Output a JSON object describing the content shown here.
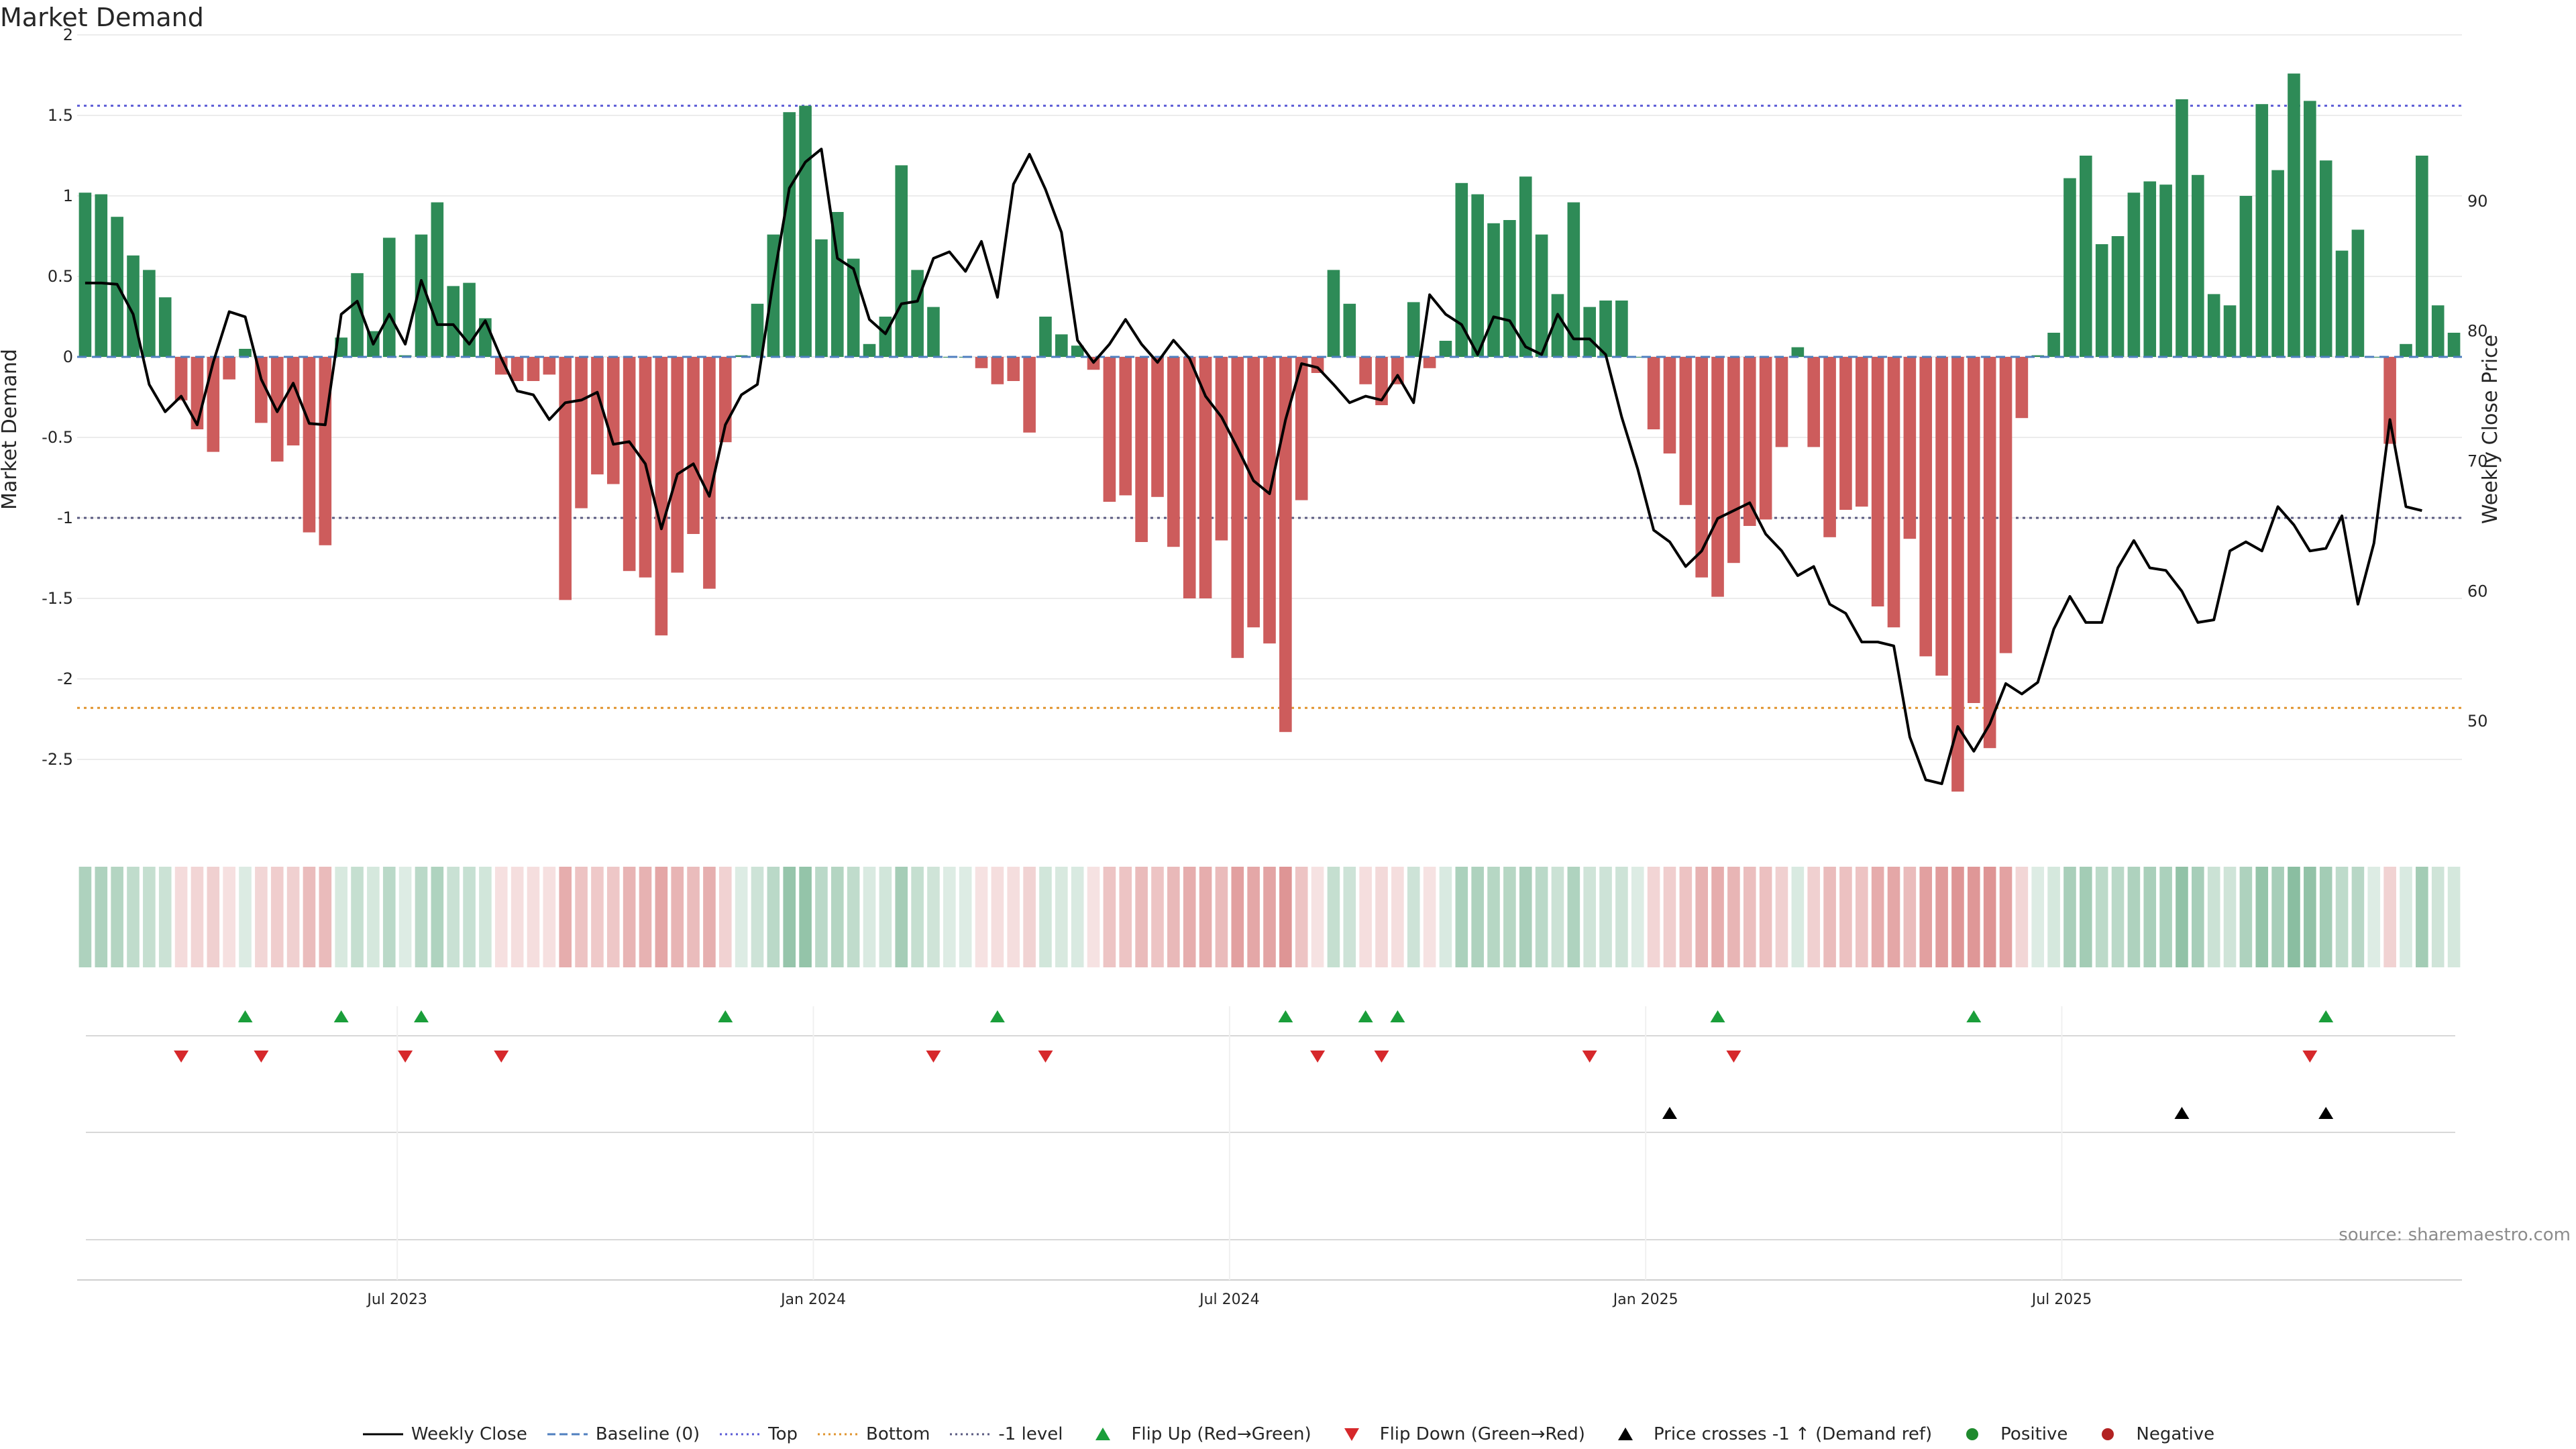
{
  "title": "Market Demand",
  "source": "source: sharemaestro.com",
  "colors": {
    "positive": "#2e8b57",
    "negative": "#cd5c5c",
    "price": "#000000",
    "baseline": "#4f7fbf",
    "top": "#5b5bd6",
    "bottom": "#e0942e",
    "minus_one": "#5a5a80",
    "flip_up": "#1a9e3a",
    "flip_down": "#d6282b",
    "cross": "#000000"
  },
  "legend": [
    {
      "label": "Weekly Close",
      "kind": "line",
      "color": "#000000"
    },
    {
      "label": "Baseline (0)",
      "kind": "dash",
      "color": "#4f7fbf"
    },
    {
      "label": "Top",
      "kind": "dot",
      "color": "#5b5bd6"
    },
    {
      "label": "Bottom",
      "kind": "dot",
      "color": "#e0942e"
    },
    {
      "label": "-1 level",
      "kind": "dot",
      "color": "#5a5a80"
    },
    {
      "label": "Flip Up (Red→Green)",
      "kind": "tri-up",
      "color": "#1a9e3a"
    },
    {
      "label": "Flip Down (Green→Red)",
      "kind": "tri-down",
      "color": "#d6282b"
    },
    {
      "label": "Price crosses -1 ↑ (Demand ref)",
      "kind": "tri-up",
      "color": "#000000"
    },
    {
      "label": "Positive",
      "kind": "circle",
      "color": "#1f8a2e"
    },
    {
      "label": "Negative",
      "kind": "circle",
      "color": "#b22222"
    }
  ],
  "chart_data": {
    "type": "bar",
    "title": "Market Demand",
    "ylabel": "Market Demand",
    "y2label": "Weekly Close Price",
    "ylim": [
      -2.95,
      2.05
    ],
    "y_ticks": [
      -2.5,
      -2,
      -1.5,
      -1,
      -0.5,
      0,
      0.5,
      1,
      1.5,
      2
    ],
    "y_tick_labels": [
      "-2.5",
      "-2",
      "-1.5",
      "-1",
      "-0.5",
      "0",
      "0.5",
      "1",
      "1.5",
      "2"
    ],
    "y2lim": [
      41.5,
      103.4
    ],
    "y2_ticks": [
      50,
      60,
      70,
      80,
      90
    ],
    "y2_tick_labels": [
      "50",
      "60",
      "70",
      "80",
      "90"
    ],
    "x_ticks": [
      20,
      46,
      72,
      98,
      124
    ],
    "x_tick_labels": [
      "Jul 2023",
      "Jan 2024",
      "Jul 2024",
      "Jan 2025",
      "Jul 2025"
    ],
    "reference_lines": {
      "top": 1.56,
      "bottom": -2.18,
      "minus_one": -1.0,
      "baseline": 0
    },
    "demand": [
      1.02,
      1.01,
      0.87,
      0.63,
      0.54,
      0.37,
      -0.27,
      -0.45,
      -0.59,
      -0.14,
      0.05,
      -0.41,
      -0.65,
      -0.55,
      -1.09,
      -1.17,
      0.12,
      0.52,
      0.16,
      0.74,
      0.01,
      0.76,
      0.96,
      0.44,
      0.46,
      0.24,
      -0.11,
      -0.15,
      -0.15,
      -0.11,
      -1.51,
      -0.94,
      -0.73,
      -0.79,
      -1.33,
      -1.37,
      -1.73,
      -1.34,
      -1.1,
      -1.44,
      -0.53,
      0.01,
      0.33,
      0.76,
      1.52,
      1.56,
      0.73,
      0.9,
      0.61,
      0.08,
      0.25,
      1.19,
      0.54,
      0.31,
      0.0,
      0.0,
      -0.07,
      -0.17,
      -0.15,
      -0.47,
      0.25,
      0.14,
      0.07,
      -0.08,
      -0.9,
      -0.86,
      -1.15,
      -0.87,
      -1.18,
      -1.5,
      -1.5,
      -1.14,
      -1.87,
      -1.68,
      -1.78,
      -2.33,
      -0.89,
      -0.1,
      0.54,
      0.33,
      -0.17,
      -0.3,
      -0.17,
      0.34,
      -0.07,
      0.1,
      1.08,
      1.01,
      0.83,
      0.85,
      1.12,
      0.76,
      0.39,
      0.96,
      0.31,
      0.35,
      0.35,
      0.0,
      -0.45,
      -0.6,
      -0.92,
      -1.37,
      -1.49,
      -1.28,
      -1.05,
      -1.01,
      -0.56,
      0.06,
      -0.56,
      -1.12,
      -0.95,
      -0.93,
      -1.55,
      -1.68,
      -1.13,
      -1.86,
      -1.98,
      -2.7,
      -2.15,
      -2.43,
      -1.84,
      -0.38,
      0.01,
      0.15,
      1.11,
      1.25,
      0.7,
      0.75,
      1.02,
      1.09,
      1.07,
      1.6,
      1.13,
      0.39,
      0.32,
      1.0,
      1.57,
      1.16,
      1.76,
      1.59,
      1.22,
      0.66,
      0.79,
      0.0,
      -0.54,
      0.08,
      1.25,
      0.32,
      0.15
    ],
    "price": [
      83.7,
      83.7,
      83.6,
      81.3,
      75.9,
      73.8,
      75.0,
      72.8,
      77.6,
      81.5,
      81.1,
      76.3,
      73.8,
      76.0,
      72.9,
      72.8,
      81.3,
      82.3,
      79.0,
      81.3,
      79.0,
      83.9,
      80.5,
      80.5,
      79.0,
      80.8,
      77.9,
      75.4,
      75.1,
      73.2,
      74.5,
      74.7,
      75.3,
      71.3,
      71.5,
      69.8,
      64.8,
      69.0,
      69.8,
      67.3,
      72.8,
      75.1,
      75.9,
      83.9,
      91.0,
      93.0,
      94.0,
      85.6,
      84.8,
      80.9,
      79.8,
      82.1,
      82.3,
      85.6,
      86.1,
      84.6,
      86.9,
      82.6,
      91.3,
      93.6,
      90.9,
      87.6,
      79.3,
      77.6,
      79.0,
      80.9,
      79.0,
      77.6,
      79.3,
      77.9,
      75.0,
      73.4,
      71.0,
      68.5,
      67.5,
      73.2,
      77.5,
      77.2,
      75.9,
      74.5,
      75.0,
      74.7,
      76.6,
      74.5,
      82.8,
      81.3,
      80.5,
      78.2,
      81.1,
      80.8,
      78.8,
      78.2,
      81.3,
      79.4,
      79.4,
      78.2,
      73.4,
      69.4,
      64.7,
      63.8,
      61.9,
      63.1,
      65.6,
      66.2,
      66.8,
      64.4,
      63.1,
      61.2,
      61.9,
      59.0,
      58.3,
      56.1,
      56.1,
      55.8,
      48.8,
      45.5,
      45.2,
      49.6,
      47.7,
      49.8,
      52.9,
      52.1,
      53.0,
      57.1,
      59.6,
      57.6,
      57.6,
      61.8,
      63.9,
      61.8,
      61.6,
      60.0,
      57.6,
      57.8,
      63.1,
      63.8,
      63.1,
      66.5,
      65.1,
      63.1,
      63.3,
      65.8,
      59.0,
      63.7,
      73.2,
      66.5,
      66.2
    ],
    "flip_up": [
      10,
      16,
      21,
      40,
      57,
      75,
      80,
      82,
      102,
      118,
      140
    ],
    "flip_down": [
      6,
      11,
      20,
      26,
      53,
      60,
      77,
      81,
      94,
      103,
      139
    ],
    "price_cross_minus1_up": [
      99,
      131,
      140
    ]
  }
}
